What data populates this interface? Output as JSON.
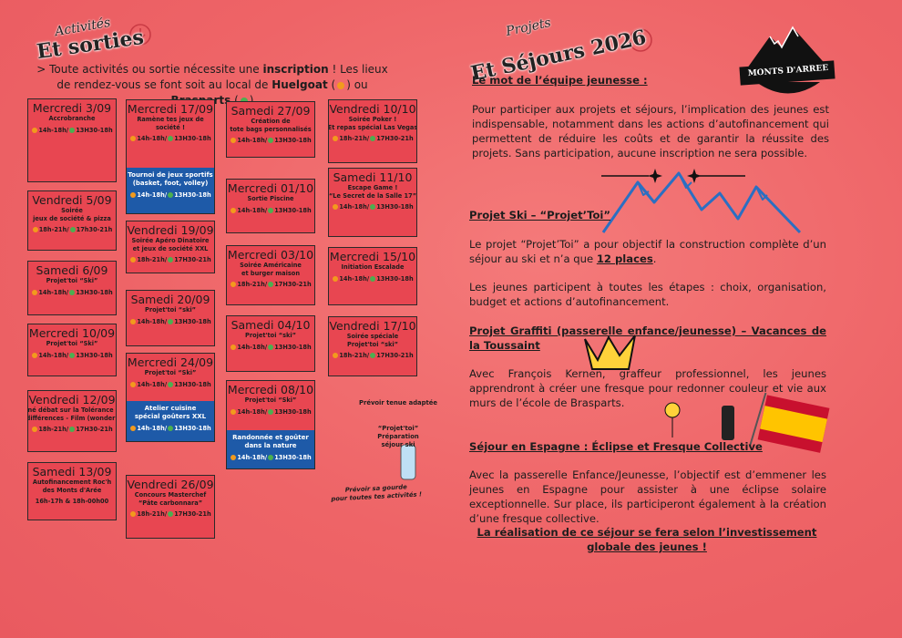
{
  "left": {
    "title_small": "Activités",
    "title_big": "Et sorties",
    "intro": [
      "> Toute activités ou sortie nécessite une ",
      "inscription",
      " ! Les lieux de rendez-vous se font soit au local de ",
      "Huelgoat",
      " (",
      ") ou ",
      "Brasparts",
      " (",
      ")"
    ],
    "cards": [
      {
        "day": "Mercredi 3/09",
        "lines": [
          "Accrobranche"
        ],
        "times": [
          "14h-18h/",
          "13H30-18h"
        ]
      },
      {
        "day": "Vendredi 5/09",
        "lines": [
          "Soirée",
          "jeux de société & pizza"
        ],
        "times": [
          "18h-21h/",
          "17h30-21h"
        ]
      },
      {
        "day": "Samedi 6/09",
        "lines": [
          "Projet'toi “Ski”"
        ],
        "times": [
          "14h-18h/",
          "13H30-18h"
        ]
      },
      {
        "day": "Mercredi 10/09",
        "lines": [
          "Projet'toi “Ski”"
        ],
        "times": [
          "14h-18h/",
          "13H30-18h"
        ]
      },
      {
        "day": "Vendredi 12/09",
        "lines": [
          "Ciné débat sur la Tolérance et",
          "différences - Film (wonder)"
        ],
        "times": [
          "18h-21h/",
          "17H30-21h"
        ]
      },
      {
        "day": "Samedi 13/09",
        "lines": [
          "Autofinancement Roc'h",
          "des Monts d'Arée"
        ],
        "times": [
          "16h-17h & 18h-00h00"
        ]
      },
      {
        "day": "Mercredi 17/09",
        "lines": [
          "Ramène tes jeux de",
          "société !"
        ],
        "times": [
          "14h-18h/",
          "13H30-18h"
        ],
        "extra": {
          "lines": [
            "Tournoi de jeux sportifs",
            "(basket, foot, volley)"
          ],
          "times": [
            "14h-18h/",
            "13H30-18h"
          ]
        }
      },
      {
        "day": "Vendredi 19/09",
        "lines": [
          "Soirée Apéro Dinatoire",
          "et jeux de société XXL"
        ],
        "times": [
          "18h-21h/",
          "17H30-21h"
        ]
      },
      {
        "day": "Samedi 20/09",
        "lines": [
          "Projet'toi “ski”"
        ],
        "times": [
          "14h-18h/",
          "13H30-18h"
        ]
      },
      {
        "day": "Mercredi 24/09",
        "lines": [
          "Projet'toi “Ski”"
        ],
        "times": [
          "14h-18h/",
          "13H30-18h"
        ],
        "extra": {
          "lines": [
            "Atelier cuisine",
            "spécial goûters XXL"
          ],
          "times": [
            "14h-18h/",
            "13H30-18h"
          ]
        }
      },
      {
        "day": "Vendredi 26/09",
        "lines": [
          "Concours Masterchef",
          "“Pâte carbonnara”"
        ],
        "times": [
          "18h-21h/",
          "17H30-21h"
        ]
      },
      {
        "day": "Samedi 27/09",
        "lines": [
          "Création de",
          "tote bags personnalisés"
        ],
        "times": [
          "14h-18h/",
          "13H30-18h"
        ]
      },
      {
        "day": "Mercredi 01/10",
        "lines": [
          "Sortie Piscine"
        ],
        "times": [
          "14h-18h/",
          "13H30-18h"
        ]
      },
      {
        "day": "Mercredi 03/10",
        "lines": [
          "Soirée Américaine",
          "et burger maison"
        ],
        "times": [
          "18h-21h/",
          "17H30-21h"
        ]
      },
      {
        "day": "Samedi 04/10",
        "lines": [
          "Projet'toi “ski”"
        ],
        "times": [
          "14h-18h/",
          "13H30-18h"
        ]
      },
      {
        "day": "Mercredi 08/10",
        "lines": [
          "Projet'toi “Ski”"
        ],
        "times": [
          "14h-18h/",
          "13H30-18h"
        ],
        "extra": {
          "lines": [
            "Randonnée et goûter",
            "dans la nature"
          ],
          "times": [
            "14h-18h/",
            "13H30-18h"
          ]
        }
      },
      {
        "day": "Vendredi 10/10",
        "lines": [
          "Soirée Poker !",
          "Et repas spécial Las Vegas"
        ],
        "times": [
          "18h-21h/",
          "17H30-21h"
        ]
      },
      {
        "day": "Samedi 11/10",
        "lines": [
          "Escape Game !",
          "“Le Secret de la Salle 17”"
        ],
        "times": [
          "14h-18h/",
          "13H30-18h"
        ]
      },
      {
        "day": "Mercredi 15/10",
        "lines": [
          "Initiation Escalade"
        ],
        "times": [
          "14h-18h/",
          "13H30-18h"
        ]
      },
      {
        "day": "Vendredi 17/10",
        "lines": [
          "Soirée spéciale",
          "Projet'toi “ski”"
        ],
        "times": [
          "18h-21h/",
          "17H30-21h"
        ]
      }
    ],
    "notes": {
      "outfit": "Prévoir tenue adaptée",
      "ski_prep": [
        "“Projet'toi” Préparation",
        "séjour ski"
      ],
      "bottle": [
        "Prévoir sa gourde",
        "pour toutes tes activités !"
      ]
    }
  },
  "right": {
    "title_small": "Projets",
    "title_big": "Et Séjours 2026",
    "logo": "MONTS D'ARREE",
    "team_heading": "Le mot de l’équipe jeunesse :",
    "team_text": "Pour participer aux projets et séjours, l’implication des jeunes est indispensable, notamment dans les actions d’autofinancement qui permettent de réduire les coûts et de garantir la réussite des projets. Sans participation, aucune inscription ne sera possible.",
    "ski_heading": "Projet Ski – “Projet’Toi”",
    "ski_text": [
      "Le projet “Projet’Toi” a pour objectif la construction complète d’un séjour au ski et n’a que ",
      "12 places",
      "."
    ],
    "ski_text2": "Les jeunes participent à toutes les étapes : choix, organisation, budget et actions d’autofinancement.",
    "graffiti_heading": "Projet Graffiti (passerelle enfance/jeunesse) – Vacances de la Toussaint",
    "graffiti_text": "Avec François Kernen, graffeur professionnel, les jeunes apprendront à créer une fresque pour redonner couleur et vie aux murs de l’école de Brasparts.",
    "spain_heading": "Séjour en Espagne : Éclipse et Fresque Collective",
    "spain_text": "Avec la passerelle Enfance/Jeunesse, l’objectif est d’emmener les jeunes en Espagne pour assister à une éclipse solaire exceptionnelle. Sur place, ils participeront également à la création d’une fresque collective.",
    "closing": "La réalisation de ce séjour se fera selon l’investissement globale des jeunes !"
  }
}
